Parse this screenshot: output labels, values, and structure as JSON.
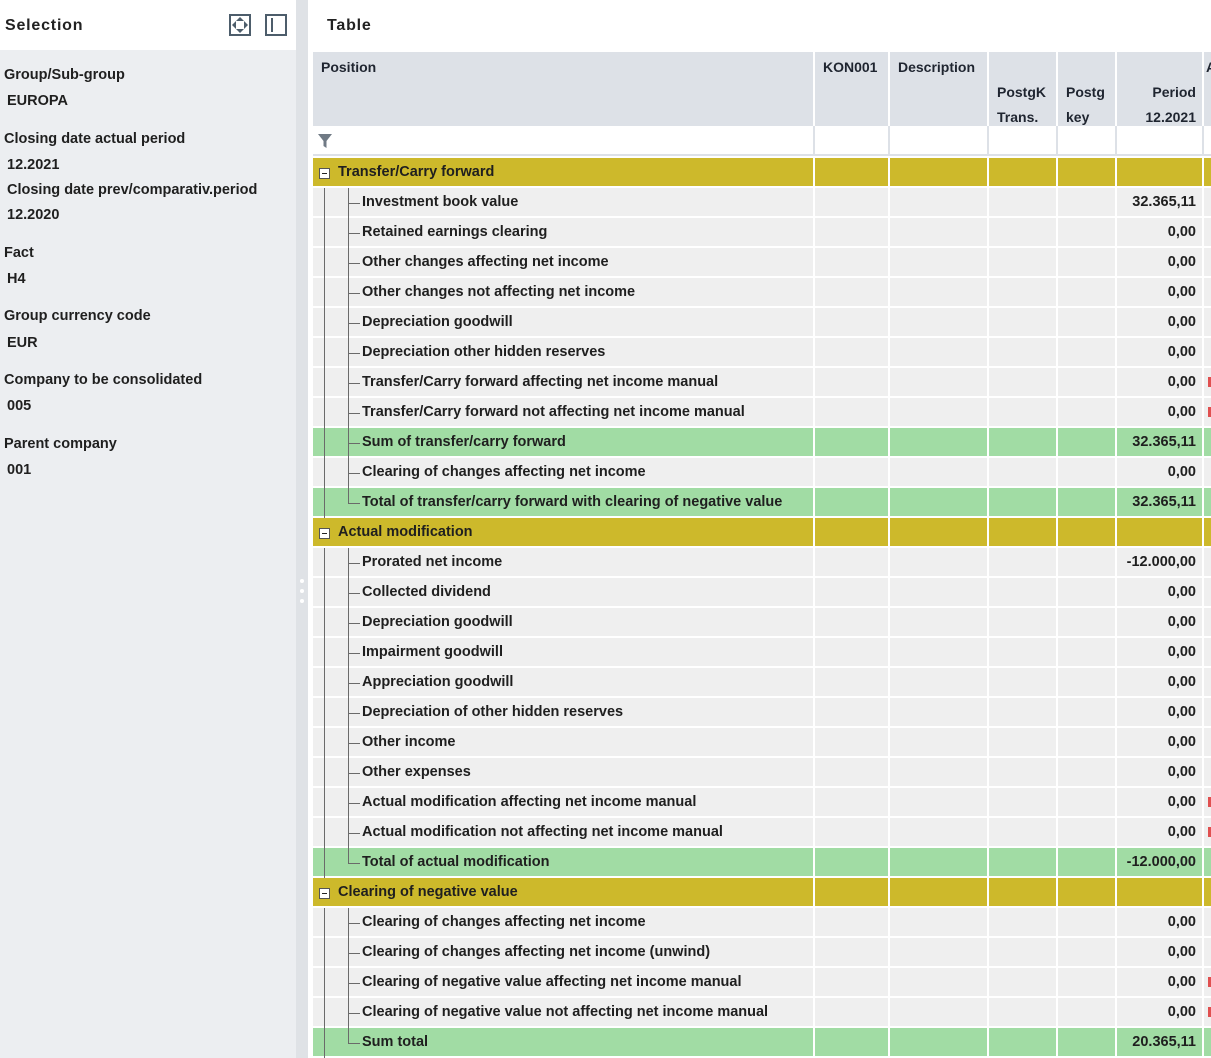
{
  "selection_panel": {
    "title": "Selection",
    "fields": [
      {
        "label": "Group/Sub-group",
        "value": "EUROPA"
      },
      {
        "label": "Closing date actual period",
        "value": "12.2021"
      },
      {
        "label": "Closing date prev/comparativ.period",
        "value": "12.2020"
      },
      {
        "label": "Fact",
        "value": "H4"
      },
      {
        "label": "Group currency code",
        "value": "EUR"
      },
      {
        "label": "Company to be consolidated",
        "value": "005"
      },
      {
        "label": "Parent company",
        "value": "001"
      }
    ]
  },
  "table_panel": {
    "title": "Table",
    "columns": {
      "position": "Position",
      "kon001": "KON001",
      "description": "Description",
      "postgk": "PostgK\nTrans.\nDevel.",
      "postg_key": "Postg\nkey",
      "period": "Period\n12.2021",
      "extra": "A"
    },
    "rows": [
      {
        "kind": "group",
        "label": "Transfer/Carry forward",
        "value": ""
      },
      {
        "kind": "item",
        "label": "Investment book value",
        "value": "32.365,11"
      },
      {
        "kind": "item",
        "label": "Retained earnings clearing",
        "value": "0,00"
      },
      {
        "kind": "item",
        "label": "Other changes affecting net income",
        "value": "0,00"
      },
      {
        "kind": "item",
        "label": "Other changes not affecting net income",
        "value": "0,00"
      },
      {
        "kind": "item",
        "label": "Depreciation goodwill",
        "value": "0,00"
      },
      {
        "kind": "item",
        "label": "Depreciation other hidden reserves",
        "value": "0,00"
      },
      {
        "kind": "item",
        "label": "Transfer/Carry forward affecting net income manual",
        "value": "0,00",
        "flag": true
      },
      {
        "kind": "item",
        "label": "Transfer/Carry forward not affecting net income manual",
        "value": "0,00",
        "flag": true
      },
      {
        "kind": "sum",
        "label": "Sum of transfer/carry forward",
        "value": "32.365,11"
      },
      {
        "kind": "item",
        "label": "Clearing of changes affecting net income",
        "value": "0,00"
      },
      {
        "kind": "sum",
        "label": "Total of transfer/carry forward with clearing of negative value",
        "value": "32.365,11",
        "last": true
      },
      {
        "kind": "group",
        "label": "Actual modification",
        "value": ""
      },
      {
        "kind": "item",
        "label": "Prorated net income",
        "value": "-12.000,00"
      },
      {
        "kind": "item",
        "label": "Collected dividend",
        "value": "0,00"
      },
      {
        "kind": "item",
        "label": "Depreciation goodwill",
        "value": "0,00"
      },
      {
        "kind": "item",
        "label": "Impairment goodwill",
        "value": "0,00"
      },
      {
        "kind": "item",
        "label": "Appreciation goodwill",
        "value": "0,00"
      },
      {
        "kind": "item",
        "label": "Depreciation  of other hidden reserves",
        "value": "0,00"
      },
      {
        "kind": "item",
        "label": "Other income",
        "value": "0,00"
      },
      {
        "kind": "item",
        "label": "Other expenses",
        "value": "0,00"
      },
      {
        "kind": "item",
        "label": "Actual modification affecting net income manual",
        "value": "0,00",
        "flag": true
      },
      {
        "kind": "item",
        "label": "Actual modification not affecting net income manual",
        "value": "0,00",
        "flag": true
      },
      {
        "kind": "sum",
        "label": "Total of actual modification",
        "value": "-12.000,00",
        "last": true
      },
      {
        "kind": "group",
        "label": "Clearing of negative value",
        "value": ""
      },
      {
        "kind": "item",
        "label": "Clearing of changes affecting net income",
        "value": "0,00"
      },
      {
        "kind": "item",
        "label": "Clearing of changes affecting net income (unwind)",
        "value": "0,00"
      },
      {
        "kind": "item",
        "label": "Clearing of negative value affecting net income manual",
        "value": "0,00",
        "flag": true
      },
      {
        "kind": "item",
        "label": "Clearing of negative value not affecting net income manual",
        "value": "0,00",
        "flag": true
      },
      {
        "kind": "sum",
        "label": "Sum total",
        "value": "20.365,11",
        "last": true
      }
    ]
  }
}
